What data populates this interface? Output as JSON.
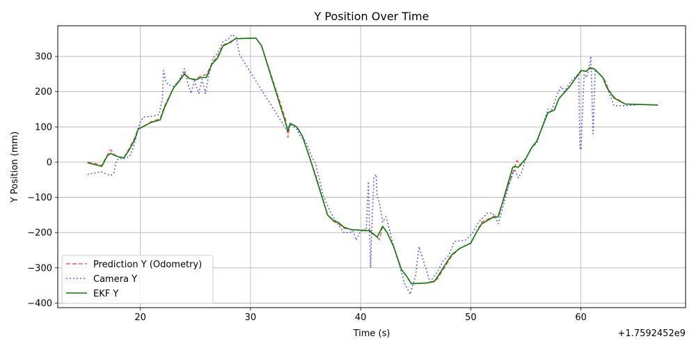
{
  "chart_data": {
    "type": "line",
    "title": "Y Position Over Time",
    "xlabel": "Time (s)",
    "ylabel": "Y Position (mm)",
    "x_offset_label": "+1.7592452e9",
    "xlim": [
      12.5,
      69.5
    ],
    "ylim": [
      -413,
      387
    ],
    "xticks": [
      20,
      30,
      40,
      50,
      60
    ],
    "yticks": [
      -400,
      -300,
      -200,
      -100,
      0,
      100,
      200,
      300
    ],
    "grid": true,
    "legend_position": "lower-left",
    "series": [
      {
        "name": "Prediction Y (Odometry)",
        "color": "#ff0000",
        "style": "dashed",
        "points": [
          [
            15.2,
            0
          ],
          [
            16,
            -5
          ],
          [
            16.5,
            -10
          ],
          [
            17,
            20
          ],
          [
            17.3,
            35
          ],
          [
            17.6,
            22
          ],
          [
            18,
            15
          ],
          [
            18.5,
            12
          ],
          [
            19,
            40
          ],
          [
            19.5,
            70
          ],
          [
            19.8,
            95
          ],
          [
            20.2,
            100
          ],
          [
            21,
            115
          ],
          [
            21.8,
            123
          ],
          [
            22.2,
            160
          ],
          [
            23,
            210
          ],
          [
            23.6,
            235
          ],
          [
            24,
            255
          ],
          [
            24.4,
            238
          ],
          [
            25,
            235
          ],
          [
            25.5,
            245
          ],
          [
            26,
            248
          ],
          [
            26.5,
            280
          ],
          [
            27,
            300
          ],
          [
            27.5,
            332
          ],
          [
            28.2,
            342
          ],
          [
            28.6,
            350
          ],
          [
            30.5,
            352
          ],
          [
            31,
            330
          ],
          [
            33.2,
            120
          ],
          [
            33.4,
            70
          ],
          [
            33.6,
            110
          ],
          [
            34.2,
            100
          ],
          [
            34.7,
            75
          ],
          [
            35.5,
            0
          ],
          [
            36,
            -45
          ],
          [
            36.5,
            -100
          ],
          [
            37,
            -150
          ],
          [
            37.5,
            -168
          ],
          [
            38,
            -175
          ],
          [
            38.5,
            -188
          ],
          [
            39.2,
            -192
          ],
          [
            40.8,
            -193
          ],
          [
            41.5,
            -213
          ],
          [
            41.7,
            -220
          ],
          [
            42,
            -182
          ],
          [
            42.4,
            -200
          ],
          [
            43,
            -240
          ],
          [
            43.7,
            -305
          ],
          [
            44.2,
            -325
          ],
          [
            44.6,
            -345
          ],
          [
            45,
            -345
          ],
          [
            46,
            -343
          ],
          [
            46.7,
            -340
          ],
          [
            47,
            -330
          ],
          [
            47.8,
            -290
          ],
          [
            48.3,
            -265
          ],
          [
            49,
            -245
          ],
          [
            50,
            -230
          ],
          [
            50.5,
            -200
          ],
          [
            51,
            -170
          ],
          [
            52,
            -155
          ],
          [
            52.5,
            -150
          ],
          [
            53.8,
            -30
          ],
          [
            54,
            -15
          ],
          [
            54.2,
            5
          ],
          [
            54.5,
            -10
          ],
          [
            55,
            10
          ],
          [
            55.5,
            40
          ],
          [
            56,
            60
          ],
          [
            57,
            140
          ],
          [
            57.6,
            150
          ],
          [
            58,
            180
          ],
          [
            59,
            215
          ],
          [
            60,
            258
          ],
          [
            60.5,
            258
          ],
          [
            60.8,
            265
          ],
          [
            61.2,
            265
          ],
          [
            62,
            240
          ],
          [
            62.3,
            225
          ],
          [
            62.5,
            205
          ],
          [
            63,
            185
          ],
          [
            64,
            165
          ],
          [
            67,
            162
          ]
        ]
      },
      {
        "name": "Camera Y",
        "color": "#0000ff",
        "style": "dotted",
        "points": [
          [
            15.2,
            -35
          ],
          [
            16,
            -30
          ],
          [
            16.5,
            -28
          ],
          [
            17,
            -35
          ],
          [
            17.3,
            -38
          ],
          [
            17.6,
            -30
          ],
          [
            17.8,
            0
          ],
          [
            18,
            10
          ],
          [
            18.5,
            10
          ],
          [
            19,
            15
          ],
          [
            19.3,
            35
          ],
          [
            19.6,
            70
          ],
          [
            19.8,
            95
          ],
          [
            20,
            115
          ],
          [
            20.3,
            128
          ],
          [
            21,
            130
          ],
          [
            21.7,
            135
          ],
          [
            22,
            180
          ],
          [
            22.1,
            260
          ],
          [
            22.3,
            230
          ],
          [
            22.5,
            220
          ],
          [
            23,
            215
          ],
          [
            23.5,
            230
          ],
          [
            24,
            265
          ],
          [
            24.3,
            225
          ],
          [
            24.6,
            195
          ],
          [
            24.9,
            230
          ],
          [
            25.3,
            195
          ],
          [
            25.6,
            235
          ],
          [
            25.9,
            195
          ],
          [
            26.2,
            245
          ],
          [
            26.6,
            295
          ],
          [
            27,
            310
          ],
          [
            27.5,
            342
          ],
          [
            28,
            350
          ],
          [
            28.3,
            362
          ],
          [
            28.7,
            355
          ],
          [
            29,
            305
          ],
          [
            33.2,
            95
          ],
          [
            33.7,
            105
          ],
          [
            34.2,
            95
          ],
          [
            34.5,
            75
          ],
          [
            35,
            60
          ],
          [
            35.5,
            20
          ],
          [
            35.9,
            -5
          ],
          [
            36.3,
            -55
          ],
          [
            36.6,
            -95
          ],
          [
            37.2,
            -138
          ],
          [
            37.6,
            -160
          ],
          [
            38,
            -180
          ],
          [
            38.5,
            -200
          ],
          [
            39,
            -200
          ],
          [
            39.3,
            -195
          ],
          [
            39.6,
            -222
          ],
          [
            40,
            -195
          ],
          [
            40.5,
            -195
          ],
          [
            40.7,
            -55
          ],
          [
            40.9,
            -300
          ],
          [
            41,
            -200
          ],
          [
            41.2,
            -45
          ],
          [
            41.4,
            -35
          ],
          [
            41.5,
            -95
          ],
          [
            41.7,
            -115
          ],
          [
            42,
            -170
          ],
          [
            42.3,
            -155
          ],
          [
            42.6,
            -190
          ],
          [
            43,
            -240
          ],
          [
            43.5,
            -290
          ],
          [
            44,
            -345
          ],
          [
            44.5,
            -375
          ],
          [
            45,
            -320
          ],
          [
            45.3,
            -240
          ],
          [
            46.3,
            -340
          ],
          [
            47,
            -310
          ],
          [
            47.5,
            -280
          ],
          [
            48,
            -265
          ],
          [
            48.5,
            -225
          ],
          [
            49.5,
            -222
          ],
          [
            50.2,
            -200
          ],
          [
            50.7,
            -170
          ],
          [
            51.5,
            -145
          ],
          [
            52,
            -145
          ],
          [
            52.5,
            -175
          ],
          [
            53.5,
            -60
          ],
          [
            54,
            -20
          ],
          [
            54.3,
            -45
          ],
          [
            54.6,
            -30
          ],
          [
            55,
            10
          ],
          [
            55.5,
            40
          ],
          [
            56,
            55
          ],
          [
            57,
            150
          ],
          [
            57.4,
            150
          ],
          [
            57.8,
            190
          ],
          [
            58.2,
            215
          ],
          [
            58.5,
            200
          ],
          [
            59,
            225
          ],
          [
            59.4,
            240
          ],
          [
            59.8,
            250
          ],
          [
            59.9,
            40
          ],
          [
            60,
            35
          ],
          [
            60.2,
            185
          ],
          [
            60.3,
            250
          ],
          [
            60.5,
            240
          ],
          [
            60.7,
            260
          ],
          [
            60.9,
            300
          ],
          [
            61.1,
            80
          ],
          [
            61.3,
            262
          ],
          [
            62,
            240
          ],
          [
            62.7,
            185
          ],
          [
            63,
            160
          ],
          [
            64,
            160
          ],
          [
            65,
            162
          ]
        ]
      },
      {
        "name": "EKF Y",
        "color": "#008000",
        "style": "solid",
        "points": [
          [
            15.2,
            -2
          ],
          [
            16,
            -8
          ],
          [
            16.5,
            -12
          ],
          [
            17,
            18
          ],
          [
            17.3,
            25
          ],
          [
            17.6,
            20
          ],
          [
            18,
            15
          ],
          [
            18.5,
            12
          ],
          [
            19,
            35
          ],
          [
            19.5,
            65
          ],
          [
            19.8,
            93
          ],
          [
            20.2,
            100
          ],
          [
            21,
            113
          ],
          [
            21.8,
            120
          ],
          [
            22.2,
            155
          ],
          [
            23,
            210
          ],
          [
            23.6,
            233
          ],
          [
            24,
            250
          ],
          [
            24.4,
            238
          ],
          [
            25,
            233
          ],
          [
            25.5,
            240
          ],
          [
            26,
            240
          ],
          [
            26.5,
            278
          ],
          [
            27,
            295
          ],
          [
            27.5,
            330
          ],
          [
            28.2,
            340
          ],
          [
            28.6,
            350
          ],
          [
            30.5,
            352
          ],
          [
            31,
            330
          ],
          [
            33.2,
            110
          ],
          [
            33.4,
            88
          ],
          [
            33.6,
            110
          ],
          [
            34.2,
            100
          ],
          [
            34.7,
            75
          ],
          [
            35.5,
            0
          ],
          [
            36,
            -50
          ],
          [
            36.5,
            -100
          ],
          [
            37,
            -150
          ],
          [
            37.5,
            -165
          ],
          [
            38,
            -172
          ],
          [
            38.5,
            -185
          ],
          [
            39.2,
            -192
          ],
          [
            40.8,
            -195
          ],
          [
            41.5,
            -213
          ],
          [
            42,
            -182
          ],
          [
            42.4,
            -200
          ],
          [
            43,
            -240
          ],
          [
            43.7,
            -305
          ],
          [
            44.2,
            -325
          ],
          [
            44.6,
            -345
          ],
          [
            46,
            -343
          ],
          [
            46.7,
            -338
          ],
          [
            47,
            -325
          ],
          [
            47.8,
            -285
          ],
          [
            48.3,
            -262
          ],
          [
            49,
            -245
          ],
          [
            50,
            -230
          ],
          [
            50.5,
            -200
          ],
          [
            51,
            -175
          ],
          [
            52,
            -157
          ],
          [
            52.5,
            -155
          ],
          [
            53.8,
            -15
          ],
          [
            54,
            -12
          ],
          [
            54.3,
            -15
          ],
          [
            55,
            10
          ],
          [
            55.5,
            40
          ],
          [
            56,
            60
          ],
          [
            57,
            140
          ],
          [
            57.6,
            148
          ],
          [
            58,
            180
          ],
          [
            59,
            215
          ],
          [
            60,
            260
          ],
          [
            60.5,
            258
          ],
          [
            60.8,
            268
          ],
          [
            61.2,
            265
          ],
          [
            62,
            240
          ],
          [
            62.3,
            215
          ],
          [
            62.5,
            205
          ],
          [
            63,
            182
          ],
          [
            64,
            165
          ],
          [
            67,
            162
          ]
        ]
      }
    ]
  }
}
